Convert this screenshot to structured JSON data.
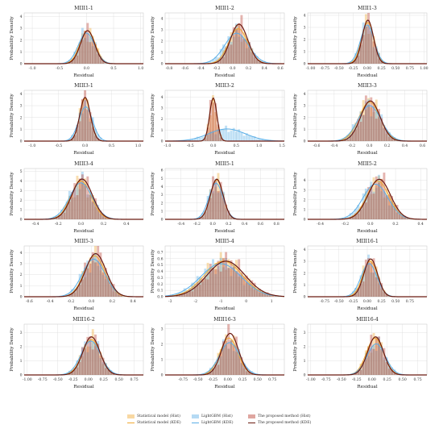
{
  "figure": {
    "y_label": "Probability Density",
    "x_label": "Residual",
    "colors": {
      "statistical": "#f0a830",
      "lightgbm": "#5aaee6",
      "proposed": "#b83a2c",
      "proposed_line": "#6b1a10",
      "grid": "#dcdcdc"
    }
  },
  "legend": {
    "items": [
      {
        "label": "Statistical model (Hist)",
        "series": "statistical",
        "kind": "hist"
      },
      {
        "label": "Statistical model (KDE)",
        "series": "statistical",
        "kind": "line"
      },
      {
        "label": "LightGBM (Hist)",
        "series": "lightgbm",
        "kind": "hist"
      },
      {
        "label": "LightGBM (KDE)",
        "series": "lightgbm",
        "kind": "line"
      },
      {
        "label": "The proposed method (Hist)",
        "series": "proposed",
        "kind": "hist"
      },
      {
        "label": "The proposed method (KDE)",
        "series": "proposed",
        "kind": "line"
      }
    ]
  },
  "chart_data": [
    {
      "type": "area",
      "title": "MIII1-1",
      "xlim": [
        -1.15,
        1.05
      ],
      "ylim": [
        0,
        4.3
      ],
      "xticks": [
        -1.0,
        -0.5,
        0.0,
        0.5,
        1.0
      ],
      "xtick_labels": [
        "-1.0",
        "-0.5",
        "0.0",
        "0.5",
        "1.0"
      ],
      "yticks": [
        0,
        1,
        2,
        3,
        4
      ],
      "series": [
        {
          "name": "Statistical model",
          "mu": 0.02,
          "sigma": 0.14,
          "peak": 2.8
        },
        {
          "name": "LightGBM",
          "mu": 0.0,
          "sigma": 0.15,
          "peak": 2.6
        },
        {
          "name": "The proposed method",
          "mu": 0.02,
          "sigma": 0.13,
          "peak": 2.8
        }
      ]
    },
    {
      "type": "area",
      "title": "MIII1-2",
      "xlim": [
        -0.85,
        0.65
      ],
      "ylim": [
        0,
        4.5
      ],
      "xticks": [
        -0.8,
        -0.6,
        -0.4,
        -0.2,
        0.0,
        0.2,
        0.4,
        0.6
      ],
      "xtick_labels": [
        "-0.8",
        "-0.6",
        "-0.4",
        "-0.2",
        "0.0",
        "0.2",
        "0.4",
        "0.6"
      ],
      "yticks": [
        0,
        1,
        2,
        3,
        4
      ],
      "series": [
        {
          "name": "Statistical model",
          "mu": 0.07,
          "sigma": 0.12,
          "peak": 3.1
        },
        {
          "name": "LightGBM",
          "mu": 0.05,
          "sigma": 0.15,
          "peak": 2.7
        },
        {
          "name": "The proposed method",
          "mu": 0.08,
          "sigma": 0.11,
          "peak": 3.5
        }
      ]
    },
    {
      "type": "area",
      "title": "MIII1-3",
      "xlim": [
        -1.05,
        1.05
      ],
      "ylim": [
        0,
        4.2
      ],
      "xticks": [
        -1.0,
        -0.75,
        -0.5,
        -0.25,
        0.0,
        0.25,
        0.5,
        0.75,
        1.0
      ],
      "xtick_labels": [
        "-1.00",
        "-0.75",
        "-0.50",
        "-0.25",
        "0.00",
        "0.25",
        "0.50",
        "0.75",
        "1.00"
      ],
      "yticks": [
        0,
        1,
        2,
        3,
        4
      ],
      "series": [
        {
          "name": "Statistical model",
          "mu": 0.01,
          "sigma": 0.11,
          "peak": 3.4
        },
        {
          "name": "LightGBM",
          "mu": 0.0,
          "sigma": 0.12,
          "peak": 3.2
        },
        {
          "name": "The proposed method",
          "mu": 0.01,
          "sigma": 0.1,
          "peak": 3.6
        }
      ]
    },
    {
      "type": "area",
      "title": "MIII3-1",
      "xlim": [
        -1.15,
        1.1
      ],
      "ylim": [
        0,
        4.3
      ],
      "xticks": [
        -1.0,
        -0.5,
        0.0,
        0.5,
        1.0
      ],
      "xtick_labels": [
        "-1.0",
        "-0.5",
        "0.0",
        "0.5",
        "1.0"
      ],
      "yticks": [
        0,
        1,
        2,
        3,
        4
      ],
      "series": [
        {
          "name": "Statistical model",
          "mu": 0.0,
          "sigma": 0.1,
          "peak": 3.6
        },
        {
          "name": "LightGBM",
          "mu": 0.01,
          "sigma": 0.13,
          "peak": 2.9
        },
        {
          "name": "The proposed method",
          "mu": 0.0,
          "sigma": 0.1,
          "peak": 3.7
        }
      ]
    },
    {
      "type": "area",
      "title": "MIII3-2",
      "xlim": [
        -1.05,
        1.55
      ],
      "ylim": [
        0,
        4.6
      ],
      "xticks": [
        -1.0,
        -0.5,
        0.0,
        0.5,
        1.0,
        1.5
      ],
      "xtick_labels": [
        "-1.0",
        "-0.5",
        "0.0",
        "0.5",
        "1.0",
        "1.5"
      ],
      "yticks": [
        0,
        1,
        2,
        3,
        4
      ],
      "series": [
        {
          "name": "Statistical model",
          "mu": 0.0,
          "sigma": 0.08,
          "peak": 3.8
        },
        {
          "name": "LightGBM",
          "mu": 0.3,
          "sigma": 0.4,
          "peak": 1.1
        },
        {
          "name": "The proposed method",
          "mu": 0.0,
          "sigma": 0.08,
          "peak": 3.9
        }
      ]
    },
    {
      "type": "area",
      "title": "MIII3-3",
      "xlim": [
        -0.7,
        0.65
      ],
      "ylim": [
        0,
        4.3
      ],
      "xticks": [
        -0.6,
        -0.4,
        -0.2,
        0.0,
        0.2,
        0.4,
        0.6
      ],
      "xtick_labels": [
        "-0.6",
        "-0.4",
        "-0.2",
        "0.0",
        "0.2",
        "0.4",
        "0.6"
      ],
      "yticks": [
        0,
        1,
        2,
        3,
        4
      ],
      "series": [
        {
          "name": "Statistical model",
          "mu": 0.0,
          "sigma": 0.12,
          "peak": 3.3
        },
        {
          "name": "LightGBM",
          "mu": 0.0,
          "sigma": 0.13,
          "peak": 3.0
        },
        {
          "name": "The proposed method",
          "mu": 0.01,
          "sigma": 0.11,
          "peak": 3.4
        }
      ]
    },
    {
      "type": "area",
      "title": "MIII3-4",
      "xlim": [
        -0.5,
        0.55
      ],
      "ylim": [
        0,
        5.3
      ],
      "xticks": [
        -0.4,
        -0.2,
        0.0,
        0.2,
        0.4
      ],
      "xtick_labels": [
        "-0.4",
        "-0.2",
        "0.0",
        "0.2",
        "0.4"
      ],
      "yticks": [
        0,
        1,
        2,
        3,
        4,
        5
      ],
      "series": [
        {
          "name": "Statistical model",
          "mu": 0.0,
          "sigma": 0.09,
          "peak": 4.0
        },
        {
          "name": "LightGBM",
          "mu": 0.0,
          "sigma": 0.1,
          "peak": 3.8
        },
        {
          "name": "The proposed method",
          "mu": 0.01,
          "sigma": 0.09,
          "peak": 4.2
        }
      ]
    },
    {
      "type": "area",
      "title": "MIII5-1",
      "xlim": [
        -0.6,
        0.9
      ],
      "ylim": [
        0,
        6.2
      ],
      "xticks": [
        -0.4,
        -0.2,
        0.0,
        0.2,
        0.4,
        0.6,
        0.8
      ],
      "xtick_labels": [
        "-0.4",
        "-0.2",
        "0.0",
        "0.2",
        "0.4",
        "0.6",
        "0.8"
      ],
      "yticks": [
        0,
        1,
        2,
        3,
        4,
        5,
        6
      ],
      "series": [
        {
          "name": "Statistical model",
          "mu": 0.05,
          "sigma": 0.08,
          "peak": 4.8
        },
        {
          "name": "LightGBM",
          "mu": 0.04,
          "sigma": 0.09,
          "peak": 4.4
        },
        {
          "name": "The proposed method",
          "mu": 0.05,
          "sigma": 0.08,
          "peak": 4.9
        }
      ]
    },
    {
      "type": "area",
      "title": "MIII5-2",
      "xlim": [
        -0.5,
        0.45
      ],
      "ylim": [
        0,
        5.2
      ],
      "xticks": [
        -0.4,
        -0.2,
        0.0,
        0.2,
        0.4
      ],
      "xtick_labels": [
        "-0.4",
        "-0.2",
        "0.0",
        "0.2",
        "0.4"
      ],
      "yticks": [
        0,
        1,
        2,
        3,
        4
      ],
      "series": [
        {
          "name": "Statistical model",
          "mu": 0.06,
          "sigma": 0.09,
          "peak": 3.9
        },
        {
          "name": "LightGBM",
          "mu": 0.04,
          "sigma": 0.1,
          "peak": 3.6
        },
        {
          "name": "The proposed method",
          "mu": 0.07,
          "sigma": 0.09,
          "peak": 4.1
        }
      ]
    },
    {
      "type": "area",
      "title": "MIII5-3",
      "xlim": [
        -0.65,
        0.5
      ],
      "ylim": [
        0,
        4.6
      ],
      "xticks": [
        -0.6,
        -0.4,
        -0.2,
        0.0,
        0.2,
        0.4
      ],
      "xtick_labels": [
        "-0.6",
        "-0.4",
        "-0.2",
        "0.0",
        "0.2",
        "0.4"
      ],
      "yticks": [
        0,
        1,
        2,
        3,
        4
      ],
      "series": [
        {
          "name": "Statistical model",
          "mu": 0.03,
          "sigma": 0.1,
          "peak": 3.7
        },
        {
          "name": "LightGBM",
          "mu": 0.02,
          "sigma": 0.11,
          "peak": 3.4
        },
        {
          "name": "The proposed method",
          "mu": 0.04,
          "sigma": 0.1,
          "peak": 3.9
        }
      ]
    },
    {
      "type": "area",
      "title": "MIII5-4",
      "xlim": [
        -3.2,
        1.5
      ],
      "ylim": [
        0,
        0.8
      ],
      "xticks": [
        -3,
        -2,
        -1,
        0,
        1
      ],
      "xtick_labels": [
        "-3",
        "-2",
        "-1",
        "0",
        "1"
      ],
      "yticks": [
        0.0,
        0.1,
        0.2,
        0.3,
        0.4,
        0.5,
        0.6,
        0.7
      ],
      "ytick_labels": [
        "0.0",
        "0.1",
        "0.2",
        "0.3",
        "0.4",
        "0.5",
        "0.6",
        "0.7"
      ],
      "series": [
        {
          "name": "Statistical model",
          "mu": -0.9,
          "sigma": 0.75,
          "peak": 0.56
        },
        {
          "name": "LightGBM",
          "mu": -1.0,
          "sigma": 0.8,
          "peak": 0.52
        },
        {
          "name": "The proposed method",
          "mu": -0.8,
          "sigma": 0.75,
          "peak": 0.56
        }
      ]
    },
    {
      "type": "area",
      "title": "MIII16-1",
      "xlim": [
        -1.05,
        1.05
      ],
      "ylim": [
        0,
        4.3
      ],
      "xticks": [
        -0.75,
        -0.5,
        -0.25,
        0.0,
        0.25,
        0.5,
        0.75
      ],
      "xtick_labels": [
        "-0.75",
        "-0.50",
        "-0.25",
        "0.00",
        "0.25",
        "0.50",
        "0.75"
      ],
      "yticks": [
        0,
        1,
        2,
        3,
        4
      ],
      "series": [
        {
          "name": "Statistical model",
          "mu": 0.05,
          "sigma": 0.13,
          "peak": 3.0
        },
        {
          "name": "LightGBM",
          "mu": 0.03,
          "sigma": 0.14,
          "peak": 2.8
        },
        {
          "name": "The proposed method",
          "mu": 0.06,
          "sigma": 0.12,
          "peak": 3.2
        }
      ]
    },
    {
      "type": "area",
      "title": "MIII16-2",
      "xlim": [
        -1.05,
        0.9
      ],
      "ylim": [
        0,
        3.6
      ],
      "xticks": [
        -1.0,
        -0.75,
        -0.5,
        -0.25,
        0.0,
        0.25,
        0.5,
        0.75
      ],
      "xtick_labels": [
        "-1.00",
        "-0.75",
        "-0.50",
        "-0.25",
        "0.00",
        "0.25",
        "0.50",
        "0.75"
      ],
      "yticks": [
        0,
        1,
        2,
        3
      ],
      "series": [
        {
          "name": "Statistical model",
          "mu": 0.05,
          "sigma": 0.15,
          "peak": 2.5
        },
        {
          "name": "LightGBM",
          "mu": 0.04,
          "sigma": 0.16,
          "peak": 2.4
        },
        {
          "name": "The proposed method",
          "mu": 0.05,
          "sigma": 0.14,
          "peak": 2.7
        }
      ]
    },
    {
      "type": "area",
      "title": "MIII16-3",
      "xlim": [
        -1.05,
        0.95
      ],
      "ylim": [
        0,
        3.3
      ],
      "xticks": [
        -0.75,
        -0.5,
        -0.25,
        0.0,
        0.25,
        0.5,
        0.75
      ],
      "xtick_labels": [
        "-0.75",
        "-0.50",
        "-0.25",
        "0.00",
        "0.25",
        "0.50",
        "0.75"
      ],
      "yticks": [
        0,
        1,
        2,
        3
      ],
      "series": [
        {
          "name": "Statistical model",
          "mu": 0.02,
          "sigma": 0.15,
          "peak": 2.4
        },
        {
          "name": "LightGBM",
          "mu": 0.03,
          "sigma": 0.17,
          "peak": 2.1
        },
        {
          "name": "The proposed method",
          "mu": 0.04,
          "sigma": 0.14,
          "peak": 2.7
        }
      ]
    },
    {
      "type": "area",
      "title": "MIII16-4",
      "xlim": [
        -1.05,
        0.9
      ],
      "ylim": [
        0,
        3.6
      ],
      "xticks": [
        -1.0,
        -0.75,
        -0.5,
        -0.25,
        0.0,
        0.25,
        0.5,
        0.75
      ],
      "xtick_labels": [
        "-1.00",
        "-0.75",
        "-0.50",
        "-0.25",
        "0.00",
        "0.25",
        "0.50",
        "0.75"
      ],
      "yticks": [
        0,
        1,
        2,
        3
      ],
      "series": [
        {
          "name": "Statistical model",
          "mu": 0.05,
          "sigma": 0.14,
          "peak": 2.6
        },
        {
          "name": "LightGBM",
          "mu": 0.07,
          "sigma": 0.15,
          "peak": 2.2
        },
        {
          "name": "The proposed method",
          "mu": 0.06,
          "sigma": 0.13,
          "peak": 2.7
        }
      ]
    }
  ]
}
